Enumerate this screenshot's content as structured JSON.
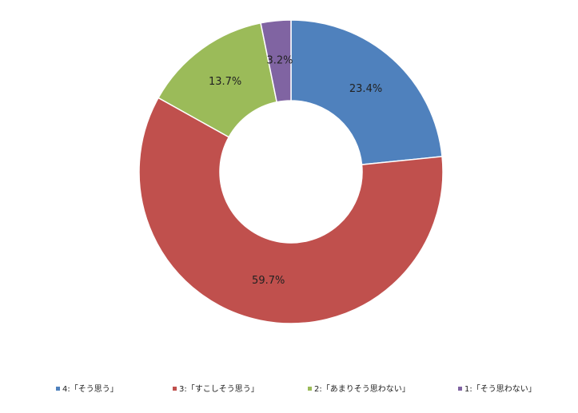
{
  "chart_data": {
    "type": "donut",
    "categories": [
      "4:「そう思う」",
      "3:「すこしそう思う」",
      "2:「あまりそう思わない」",
      "1:「そう思わない」"
    ],
    "values": [
      23.4,
      59.7,
      13.7,
      3.2
    ],
    "value_labels": [
      "23.4%",
      "59.7%",
      "13.7%",
      "3.2%"
    ],
    "colors": [
      "#4f81bd",
      "#c0504d",
      "#9bbb59",
      "#8064a2"
    ],
    "legend": "bottom"
  }
}
